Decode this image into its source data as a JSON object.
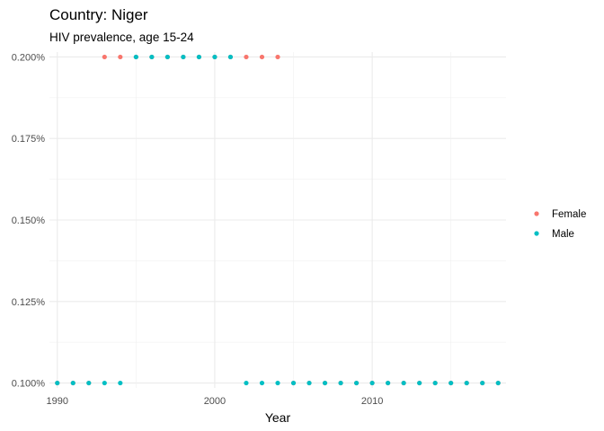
{
  "chart_data": {
    "type": "scatter",
    "title": "Country: Niger",
    "subtitle": "HIV prevalence, age 15-24",
    "xlabel": "Year",
    "ylabel": "",
    "xlim": [
      1989.5,
      2018.5
    ],
    "ylim": [
      0.000985,
      0.002015
    ],
    "x_ticks": [
      1990,
      2000,
      2010
    ],
    "y_ticks": [
      {
        "value": 0.001,
        "label": "0.100%"
      },
      {
        "value": 0.00125,
        "label": "0.125%"
      },
      {
        "value": 0.0015,
        "label": "0.150%"
      },
      {
        "value": 0.00175,
        "label": "0.175%"
      },
      {
        "value": 0.002,
        "label": "0.200%"
      }
    ],
    "grid": true,
    "legend_position": "right",
    "series": [
      {
        "name": "Female",
        "color": "#F8766D",
        "points": [
          {
            "x": 1990,
            "y": 0.001
          },
          {
            "x": 1991,
            "y": 0.001
          },
          {
            "x": 1992,
            "y": 0.001
          },
          {
            "x": 1993,
            "y": 0.002
          },
          {
            "x": 1994,
            "y": 0.002
          },
          {
            "x": 1995,
            "y": 0.002
          },
          {
            "x": 1996,
            "y": 0.002
          },
          {
            "x": 1997,
            "y": 0.002
          },
          {
            "x": 1998,
            "y": 0.002
          },
          {
            "x": 1999,
            "y": 0.002
          },
          {
            "x": 2000,
            "y": 0.002
          },
          {
            "x": 2001,
            "y": 0.002
          },
          {
            "x": 2002,
            "y": 0.002
          },
          {
            "x": 2003,
            "y": 0.002
          },
          {
            "x": 2004,
            "y": 0.002
          },
          {
            "x": 2005,
            "y": 0.001
          },
          {
            "x": 2006,
            "y": 0.001
          },
          {
            "x": 2007,
            "y": 0.001
          },
          {
            "x": 2008,
            "y": 0.001
          },
          {
            "x": 2009,
            "y": 0.001
          },
          {
            "x": 2010,
            "y": 0.001
          },
          {
            "x": 2011,
            "y": 0.001
          },
          {
            "x": 2012,
            "y": 0.001
          },
          {
            "x": 2013,
            "y": 0.001
          },
          {
            "x": 2014,
            "y": 0.001
          },
          {
            "x": 2015,
            "y": 0.001
          },
          {
            "x": 2016,
            "y": 0.001
          },
          {
            "x": 2017,
            "y": 0.001
          },
          {
            "x": 2018,
            "y": 0.001
          }
        ]
      },
      {
        "name": "Male",
        "color": "#00BFC4",
        "points": [
          {
            "x": 1990,
            "y": 0.001
          },
          {
            "x": 1991,
            "y": 0.001
          },
          {
            "x": 1992,
            "y": 0.001
          },
          {
            "x": 1993,
            "y": 0.001
          },
          {
            "x": 1994,
            "y": 0.001
          },
          {
            "x": 1995,
            "y": 0.002
          },
          {
            "x": 1996,
            "y": 0.002
          },
          {
            "x": 1997,
            "y": 0.002
          },
          {
            "x": 1998,
            "y": 0.002
          },
          {
            "x": 1999,
            "y": 0.002
          },
          {
            "x": 2000,
            "y": 0.002
          },
          {
            "x": 2001,
            "y": 0.002
          },
          {
            "x": 2002,
            "y": 0.001
          },
          {
            "x": 2003,
            "y": 0.001
          },
          {
            "x": 2004,
            "y": 0.001
          },
          {
            "x": 2005,
            "y": 0.001
          },
          {
            "x": 2006,
            "y": 0.001
          },
          {
            "x": 2007,
            "y": 0.001
          },
          {
            "x": 2008,
            "y": 0.001
          },
          {
            "x": 2009,
            "y": 0.001
          },
          {
            "x": 2010,
            "y": 0.001
          },
          {
            "x": 2011,
            "y": 0.001
          },
          {
            "x": 2012,
            "y": 0.001
          },
          {
            "x": 2013,
            "y": 0.001
          },
          {
            "x": 2014,
            "y": 0.001
          },
          {
            "x": 2015,
            "y": 0.001
          },
          {
            "x": 2016,
            "y": 0.001
          },
          {
            "x": 2017,
            "y": 0.001
          },
          {
            "x": 2018,
            "y": 0.001
          }
        ]
      }
    ]
  }
}
